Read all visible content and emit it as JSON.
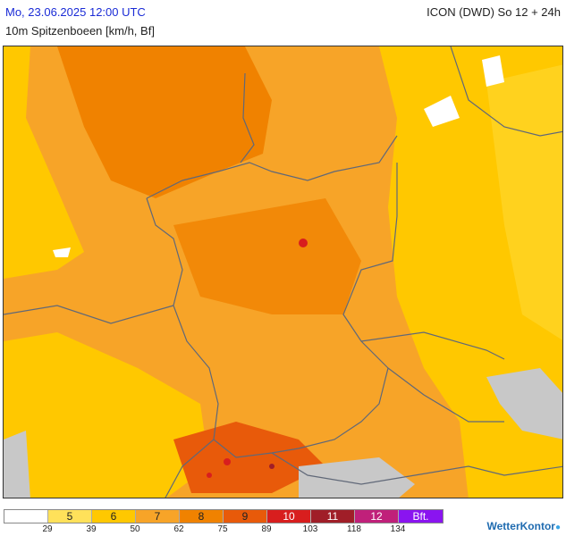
{
  "header": {
    "datetime": "Mo, 23.06.2025 12:00 UTC",
    "model": "ICON (DWD) So 12 + 24h",
    "variable": "10m Spitzenboeen [km/h, Bf]"
  },
  "legend": {
    "classes": [
      {
        "label": "",
        "color": "#ffffff"
      },
      {
        "label": "5",
        "color": "#ffe15a"
      },
      {
        "label": "6",
        "color": "#ffc800"
      },
      {
        "label": "7",
        "color": "#f7a428"
      },
      {
        "label": "8",
        "color": "#f08200"
      },
      {
        "label": "9",
        "color": "#e85a0a"
      },
      {
        "label": "10",
        "color": "#d81e1e"
      },
      {
        "label": "11",
        "color": "#a01e28"
      },
      {
        "label": "12",
        "color": "#c0207a"
      },
      {
        "label": "Bft.",
        "color": "#8a14f0"
      }
    ],
    "ticks": [
      "29",
      "39",
      "50",
      "62",
      "75",
      "89",
      "103",
      "118",
      "134"
    ]
  },
  "logo": {
    "text": "WetterKontor"
  },
  "colors": {
    "no_data": "#c8c8c8",
    "border": "#606878"
  }
}
